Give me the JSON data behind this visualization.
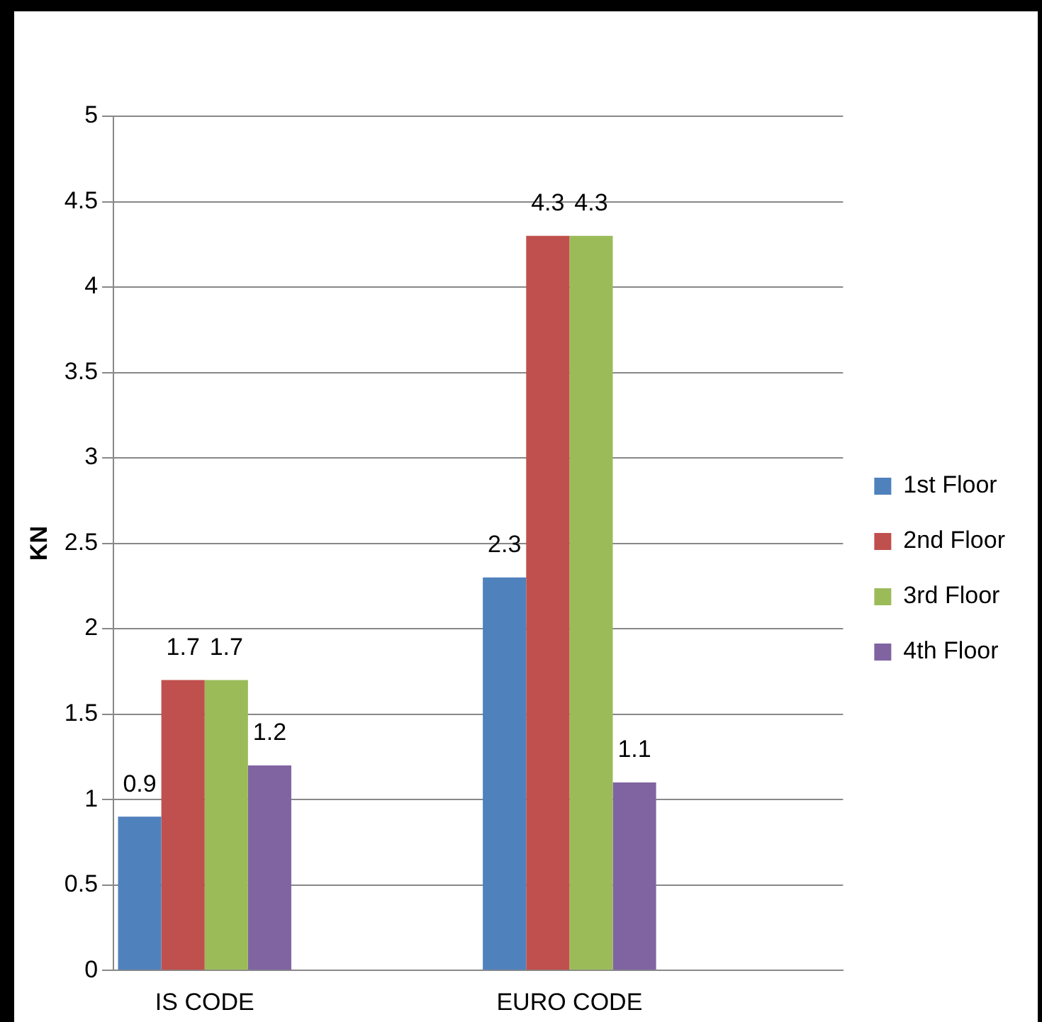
{
  "chart_data": {
    "type": "bar",
    "ylabel": "KN",
    "categories": [
      "IS CODE",
      null,
      "EURO CODE",
      null
    ],
    "series": [
      {
        "name": "1st Floor",
        "color": "#4f81bd",
        "values": [
          0.9,
          null,
          2.3,
          null
        ]
      },
      {
        "name": "2nd Floor",
        "color": "#c0504d",
        "values": [
          1.7,
          null,
          4.3,
          null
        ]
      },
      {
        "name": "3rd Floor",
        "color": "#9bbb59",
        "values": [
          1.7,
          null,
          4.3,
          null
        ]
      },
      {
        "name": "4th Floor",
        "color": "#8064a2",
        "values": [
          1.2,
          null,
          1.1,
          null
        ]
      }
    ],
    "ylim": [
      0,
      5
    ],
    "yticks": [
      0,
      0.5,
      1,
      1.5,
      2,
      2.5,
      3,
      3.5,
      4,
      4.5,
      5
    ],
    "grid": "y",
    "legend": "right",
    "data_labels": true
  }
}
